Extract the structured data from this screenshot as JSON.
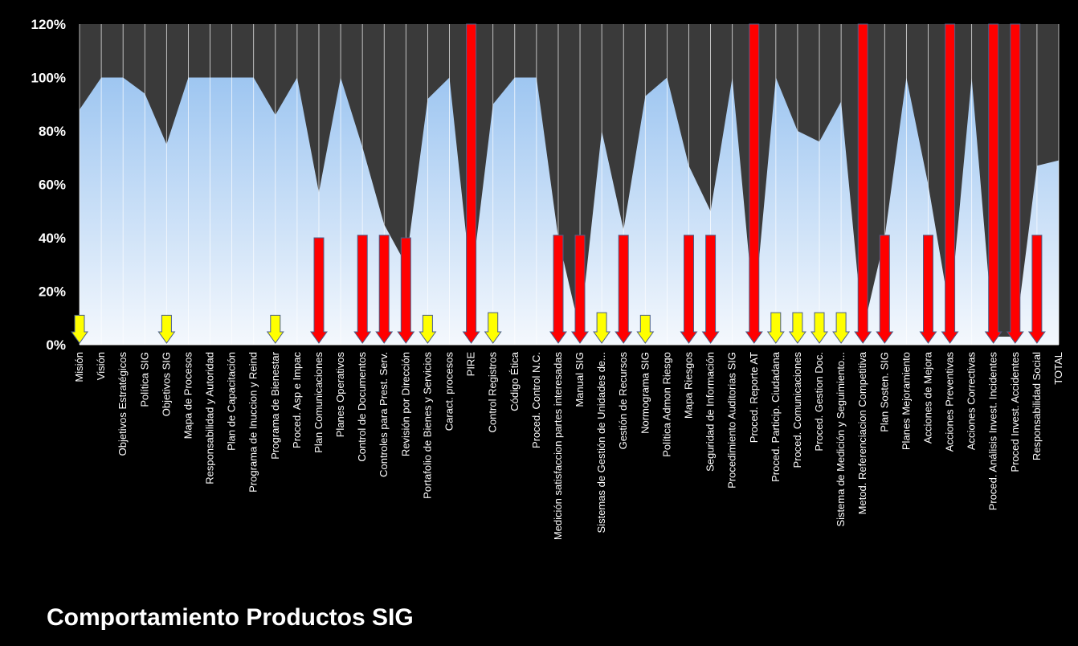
{
  "chart_data": {
    "type": "area",
    "title": "Comportamiento Productos SIG",
    "xlabel": "",
    "ylabel": "",
    "ylim": [
      0,
      1.2
    ],
    "yticks": [
      "0%",
      "20%",
      "40%",
      "60%",
      "80%",
      "100%",
      "120%"
    ],
    "grid": "vertical",
    "legend": "none",
    "categories": [
      "Misión",
      "Visión",
      "Objetivos Estratégicos",
      "Política SIG",
      "Objetivos SIG",
      "Mapa de Procesos",
      "Responsabilidad y Autoridad",
      "Plan de Capacitación",
      "Programa de Inuccion y Reind",
      "Programa de Bienestar",
      "Proced. Asp e Impac",
      "Plan Comunicaciones",
      "Planes Operativos",
      "Control de Documentos",
      "Controles para Prest. Serv.",
      "Revisión por Dirección",
      "Portafolio de Bienes y Servicios",
      "Caract. procesos",
      "PIRE",
      "Control Registros",
      "Código Ética",
      "Proced. Control N.C.",
      "Medición satisfaccion partes interesadas",
      "Manual SIG",
      "Sistemas de Gestión de Unidades de...",
      "Gestión de Recursos",
      "Normograma SIG",
      "Política Admon Riesgo",
      "Mapa Riesgos",
      "Seguridad de Información",
      "Procedimiento Auditorias SIG",
      "Proced. Reporte AT",
      "Proced. Particip. Ciudadana",
      "Proced. Comunicaciones",
      "Proced. Gestion Doc.",
      "Sistema de Medición y Seguimiento...",
      "Metod. Referenciacion Competitiva",
      "Plan Sosten. SIG",
      "Planes Mejoramiento",
      "Acciones de Mejora",
      "Acciones Preventivas",
      "Acciones Correctivas",
      "Proced. Análisis Invest. Incidentes",
      "Proced Invest. Accidentes",
      "Responsabilidad Social",
      "TOTAL"
    ],
    "series": [
      {
        "values": [
          0.88,
          1.0,
          1.0,
          0.94,
          0.75,
          1.0,
          1.0,
          1.0,
          1.0,
          0.86,
          1.0,
          0.57,
          1.0,
          0.74,
          0.45,
          0.3,
          0.92,
          1.0,
          0.23,
          0.9,
          1.0,
          1.0,
          0.4,
          0.05,
          0.8,
          0.43,
          0.93,
          1.0,
          0.67,
          0.5,
          1.0,
          0.12,
          1.0,
          0.8,
          0.76,
          0.91,
          0.05,
          0.4,
          1.0,
          0.6,
          0.12,
          1.0,
          0.03,
          0.03,
          0.67,
          0.69
        ]
      }
    ],
    "arrow_markers": [
      {
        "category": "Misión",
        "value": 0.11,
        "color": "#ffff00"
      },
      {
        "category": "Objetivos SIG",
        "value": 0.11,
        "color": "#ffff00"
      },
      {
        "category": "Programa de Bienestar",
        "value": 0.11,
        "color": "#ffff00"
      },
      {
        "category": "Plan Comunicaciones",
        "value": 0.4,
        "color": "#ff0000"
      },
      {
        "category": "Control de Documentos",
        "value": 0.41,
        "color": "#ff0000"
      },
      {
        "category": "Controles para Prest. Serv.",
        "value": 0.41,
        "color": "#ff0000"
      },
      {
        "category": "Revisión por Dirección",
        "value": 0.4,
        "color": "#ff0000"
      },
      {
        "category": "Portafolio de Bienes y Servicios",
        "value": 0.11,
        "color": "#ffff00"
      },
      {
        "category": "PIRE",
        "value": 1.2,
        "color": "#ff0000"
      },
      {
        "category": "Control Registros",
        "value": 0.12,
        "color": "#ffff00"
      },
      {
        "category": "Medición satisfaccion partes interesadas",
        "value": 0.41,
        "color": "#ff0000"
      },
      {
        "category": "Manual SIG",
        "value": 0.41,
        "color": "#ff0000"
      },
      {
        "category": "Sistemas de Gestión de Unidades de...",
        "value": 0.12,
        "color": "#ffff00"
      },
      {
        "category": "Gestión de Recursos",
        "value": 0.41,
        "color": "#ff0000"
      },
      {
        "category": "Normograma SIG",
        "value": 0.11,
        "color": "#ffff00"
      },
      {
        "category": "Mapa Riesgos",
        "value": 0.41,
        "color": "#ff0000"
      },
      {
        "category": "Seguridad de Información",
        "value": 0.41,
        "color": "#ff0000"
      },
      {
        "category": "Proced. Reporte AT",
        "value": 1.2,
        "color": "#ff0000"
      },
      {
        "category": "Proced. Particip. Ciudadana",
        "value": 0.12,
        "color": "#ffff00"
      },
      {
        "category": "Proced. Comunicaciones",
        "value": 0.12,
        "color": "#ffff00"
      },
      {
        "category": "Proced. Gestion Doc.",
        "value": 0.12,
        "color": "#ffff00"
      },
      {
        "category": "Sistema de Medición y Seguimiento...",
        "value": 0.12,
        "color": "#ffff00"
      },
      {
        "category": "Metod. Referenciacion Competitiva",
        "value": 1.2,
        "color": "#ff0000"
      },
      {
        "category": "Plan Sosten. SIG",
        "value": 0.41,
        "color": "#ff0000"
      },
      {
        "category": "Acciones de Mejora",
        "value": 0.41,
        "color": "#ff0000"
      },
      {
        "category": "Acciones Preventivas",
        "value": 1.2,
        "color": "#ff0000"
      },
      {
        "category": "Proced. Análisis Invest. Incidentes",
        "value": 1.2,
        "color": "#ff0000"
      },
      {
        "category": "Proced Invest. Accidentes",
        "value": 1.2,
        "color": "#ff0000"
      },
      {
        "category": "Responsabilidad Social",
        "value": 0.41,
        "color": "#ff0000"
      }
    ],
    "colors": {
      "background": "#000000",
      "plot_background": "#3a3a3a",
      "area_top": "#9ec6f1",
      "area_bottom": "#f4f8fd",
      "grid": "#ffffff",
      "text": "#ffffff"
    }
  }
}
